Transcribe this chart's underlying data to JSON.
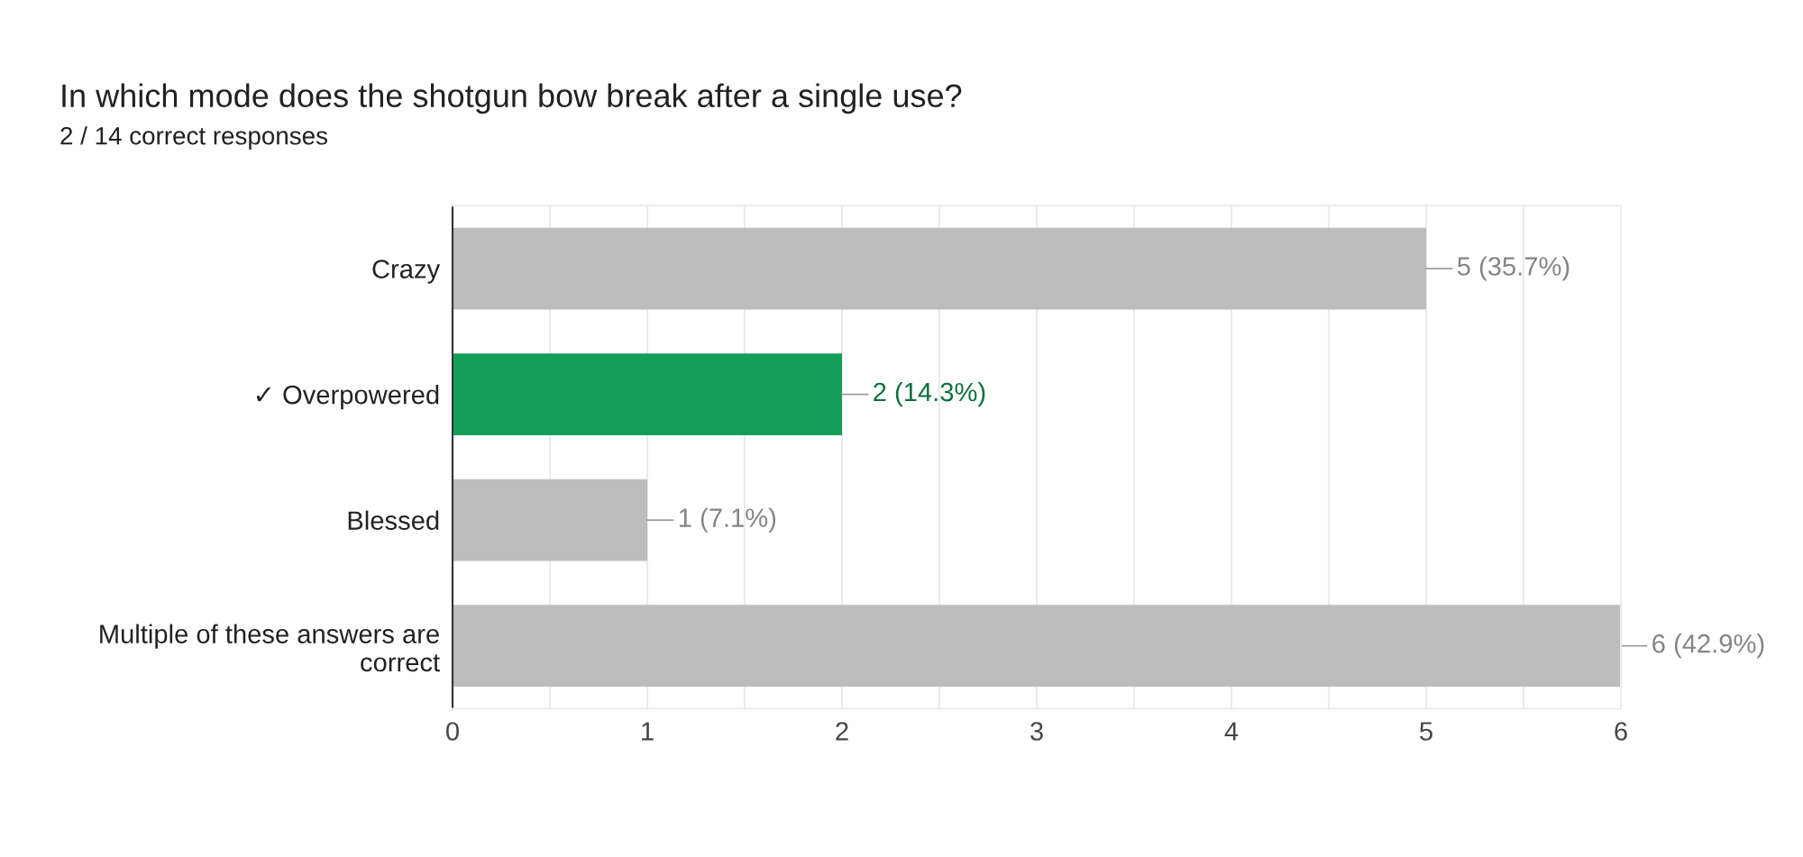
{
  "chart_data": {
    "type": "bar",
    "orientation": "horizontal",
    "title": "In which mode does the shotgun bow break after a single use?",
    "subtitle": "2 / 14 correct responses",
    "categories": [
      "Crazy",
      "✓ Overpowered",
      "Blessed",
      "Multiple of these answers are\ncorrect"
    ],
    "values": [
      5,
      2,
      1,
      6
    ],
    "colors": [
      "#bdbdbd",
      "#129e56",
      "#bdbdbd",
      "#bdbdbd"
    ],
    "value_labels": [
      "5 (35.7%)",
      "2 (14.3%)",
      "1 (7.1%)",
      "6 (42.9%)"
    ],
    "xlim": [
      0,
      6
    ],
    "xticks": [
      0,
      {
        "value": 0.5,
        "label": null
      },
      1,
      {
        "value": 1.5,
        "label": null
      },
      2,
      {
        "value": 2.5,
        "label": null
      },
      3,
      {
        "value": 3.5,
        "label": null
      },
      4,
      {
        "value": 4.5,
        "label": null
      },
      5,
      {
        "value": 5.5,
        "label": null
      },
      6
    ],
    "grid": "x",
    "legend": false
  }
}
